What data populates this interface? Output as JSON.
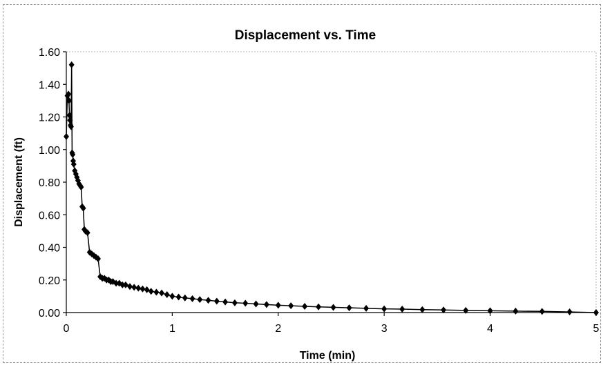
{
  "chart_data": {
    "type": "scatter",
    "title": "Displacement vs. Time",
    "xlabel": "Time (min)",
    "ylabel": "Displacement (ft)",
    "xlim": [
      0,
      5
    ],
    "ylim": [
      0,
      1.6
    ],
    "xticks": [
      0,
      1,
      2,
      3,
      4,
      5
    ],
    "xtick_labels": [
      "0",
      "1",
      "2",
      "3",
      "4",
      "5"
    ],
    "yticks": [
      0,
      0.2,
      0.4,
      0.6,
      0.8,
      1.0,
      1.2,
      1.4,
      1.6
    ],
    "ytick_labels": [
      "0.00",
      "0.20",
      "0.40",
      "0.60",
      "0.80",
      "1.00",
      "1.20",
      "1.40",
      "1.60"
    ],
    "grid": false,
    "legend": "none",
    "marker": "diamond",
    "line": "connected",
    "color": "#000000",
    "series": [
      {
        "x": [
          0.0,
          0.01,
          0.02,
          0.025,
          0.03,
          0.035,
          0.04,
          0.045,
          0.05,
          0.055,
          0.06,
          0.065,
          0.07,
          0.08,
          0.09,
          0.1,
          0.11,
          0.12,
          0.13,
          0.14,
          0.15,
          0.16,
          0.17,
          0.18,
          0.2,
          0.22,
          0.24,
          0.26,
          0.28,
          0.3,
          0.32,
          0.34,
          0.36,
          0.38,
          0.4,
          0.42,
          0.44,
          0.47,
          0.5,
          0.53,
          0.56,
          0.6,
          0.64,
          0.68,
          0.72,
          0.76,
          0.8,
          0.85,
          0.9,
          0.95,
          1.0,
          1.06,
          1.12,
          1.19,
          1.26,
          1.34,
          1.42,
          1.5,
          1.59,
          1.69,
          1.79,
          1.89,
          2.0,
          2.12,
          2.25,
          2.38,
          2.52,
          2.67,
          2.83,
          3.0,
          3.17,
          3.36,
          3.56,
          3.77,
          4.0,
          4.24,
          4.49,
          4.75,
          5.0
        ],
        "y": [
          1.08,
          1.33,
          1.34,
          1.3,
          1.21,
          1.18,
          1.15,
          1.14,
          1.52,
          0.98,
          0.97,
          0.93,
          0.91,
          0.87,
          0.85,
          0.83,
          0.81,
          0.79,
          0.78,
          0.77,
          0.65,
          0.64,
          0.51,
          0.5,
          0.49,
          0.37,
          0.36,
          0.35,
          0.34,
          0.33,
          0.22,
          0.21,
          0.21,
          0.2,
          0.2,
          0.19,
          0.19,
          0.18,
          0.18,
          0.17,
          0.17,
          0.16,
          0.155,
          0.15,
          0.145,
          0.14,
          0.13,
          0.125,
          0.12,
          0.11,
          0.1,
          0.095,
          0.09,
          0.085,
          0.08,
          0.075,
          0.07,
          0.065,
          0.06,
          0.057,
          0.053,
          0.049,
          0.045,
          0.042,
          0.038,
          0.035,
          0.032,
          0.029,
          0.026,
          0.023,
          0.021,
          0.018,
          0.016,
          0.013,
          0.011,
          0.009,
          0.007,
          0.004,
          0.0
        ]
      }
    ]
  }
}
